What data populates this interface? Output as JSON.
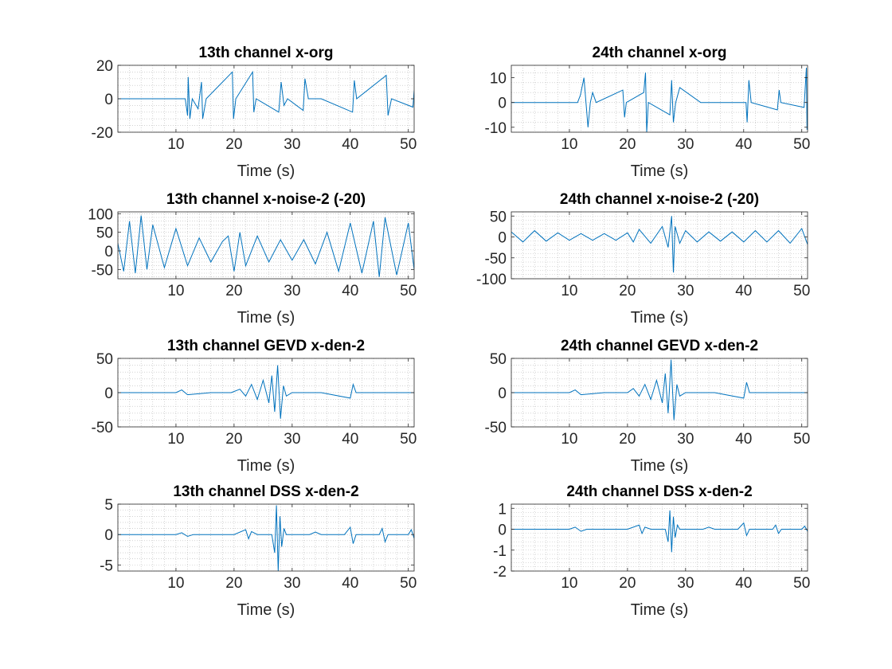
{
  "colors": {
    "line": "#0072BD",
    "axis": "#262626",
    "grid": "#b8b8b8",
    "background": "#ffffff"
  },
  "chart_data": [
    {
      "type": "line",
      "title": "13th channel x-org",
      "xlabel": "Time (s)",
      "ylabel": "",
      "xlim": [
        0,
        51
      ],
      "ylim": [
        -20,
        20
      ],
      "xticks": [
        10,
        20,
        30,
        40,
        50
      ],
      "yticks": [
        -20,
        0,
        20
      ],
      "grid": "on (minor, dotted)",
      "legend": "none",
      "series": [
        {
          "x": [
            0,
            5,
            11.6,
            12.0,
            12.1,
            12.4,
            12.8,
            13.8,
            14.4,
            14.6,
            15.2,
            19.7,
            19.9,
            20.3,
            23.2,
            23.4,
            23.8,
            27.7,
            28.1,
            28.6,
            29.2,
            31.9,
            32.2,
            32.8,
            35,
            40.4,
            40.7,
            41.1,
            46.2,
            46.5,
            47.1,
            50.8,
            51
          ],
          "y": [
            0,
            0,
            0,
            -10,
            13,
            -12,
            0,
            -6,
            10,
            -12,
            0,
            16,
            -12,
            0,
            16,
            -8,
            0,
            -8,
            10,
            -4,
            0,
            -7,
            12,
            0,
            0,
            -8,
            11,
            0,
            14,
            -10,
            0,
            -5,
            5
          ]
        }
      ]
    },
    {
      "type": "line",
      "title": "24th channel x-org",
      "xlabel": "Time (s)",
      "ylabel": "",
      "xlim": [
        0,
        51
      ],
      "ylim": [
        -12,
        15
      ],
      "xticks": [
        10,
        20,
        30,
        40,
        50
      ],
      "yticks": [
        -10,
        0,
        10
      ],
      "grid": "on (minor, dotted)",
      "legend": "none",
      "series": [
        {
          "x": [
            0,
            11,
            11.4,
            11.9,
            12.5,
            13.2,
            13.6,
            14,
            14.6,
            19.2,
            19.5,
            19.8,
            22.8,
            23.1,
            23.3,
            23.6,
            27.3,
            27.6,
            27.9,
            28.3,
            29.0,
            32.6,
            40.4,
            40.6,
            40.9,
            41.3,
            45.8,
            46.1,
            46.4,
            50.4,
            50.8,
            50.9,
            51
          ],
          "y": [
            0,
            0,
            0,
            3,
            10,
            -10,
            0,
            4,
            0,
            5,
            -6,
            0,
            4,
            12,
            -12,
            0,
            -5,
            9,
            -8,
            0,
            6,
            0,
            0,
            -8,
            9,
            0,
            -3,
            5,
            0,
            -2,
            14,
            -11,
            0
          ]
        }
      ]
    },
    {
      "type": "line",
      "title": "13th channel x-noise-2 (-20)",
      "xlabel": "Time (s)",
      "ylabel": "",
      "xlim": [
        0,
        51
      ],
      "ylim": [
        -75,
        105
      ],
      "xticks": [
        10,
        20,
        30,
        40,
        50
      ],
      "yticks": [
        -50,
        0,
        50,
        100
      ],
      "grid": "on (minor, dotted)",
      "legend": "none",
      "series": [
        {
          "x": [
            0,
            1,
            2,
            3,
            4,
            5,
            6,
            8,
            10,
            12,
            14,
            16,
            18,
            19,
            20,
            21,
            22,
            24,
            26,
            28,
            30,
            32,
            34,
            36,
            38,
            40,
            42,
            44,
            45,
            46,
            48,
            50,
            51
          ],
          "y": [
            20,
            -55,
            80,
            -60,
            95,
            -50,
            70,
            -45,
            60,
            -40,
            35,
            -30,
            25,
            40,
            -55,
            50,
            -40,
            40,
            -30,
            30,
            -25,
            30,
            -35,
            50,
            -55,
            75,
            -60,
            80,
            -70,
            90,
            -65,
            75,
            -50
          ]
        }
      ]
    },
    {
      "type": "line",
      "title": "24th channel x-noise-2 (-20)",
      "xlabel": "Time (s)",
      "ylabel": "",
      "xlim": [
        0,
        51
      ],
      "ylim": [
        -100,
        60
      ],
      "xticks": [
        10,
        20,
        30,
        40,
        50
      ],
      "yticks": [
        -100,
        -50,
        0,
        50
      ],
      "grid": "on (minor, dotted)",
      "legend": "none",
      "series": [
        {
          "x": [
            0,
            2,
            4,
            6,
            8,
            10,
            12,
            14,
            16,
            18,
            20,
            21,
            22,
            24,
            26,
            27,
            27.6,
            27.9,
            28.2,
            29,
            30,
            32,
            34,
            36,
            38,
            40,
            42,
            44,
            46,
            48,
            50,
            51
          ],
          "y": [
            12,
            -12,
            15,
            -10,
            10,
            -8,
            8,
            -8,
            8,
            -8,
            10,
            -12,
            18,
            -15,
            25,
            -25,
            50,
            -85,
            25,
            -15,
            15,
            -12,
            12,
            -10,
            12,
            -12,
            15,
            -12,
            15,
            -15,
            20,
            -18
          ]
        }
      ]
    },
    {
      "type": "line",
      "title": "13th channel GEVD x-den-2",
      "xlabel": "Time (s)",
      "ylabel": "",
      "xlim": [
        0,
        51
      ],
      "ylim": [
        -50,
        50
      ],
      "xticks": [
        10,
        20,
        30,
        40,
        50
      ],
      "yticks": [
        -50,
        0,
        50
      ],
      "grid": "on (minor, dotted)",
      "legend": "none",
      "series": [
        {
          "x": [
            0,
            5,
            10,
            11,
            12,
            16,
            19.5,
            21,
            22,
            23,
            24,
            25,
            26,
            26.5,
            27,
            27.5,
            28,
            28.5,
            29,
            30,
            35,
            40,
            40.5,
            41,
            45,
            50,
            51
          ],
          "y": [
            0,
            0,
            0,
            4,
            -3,
            0,
            0,
            5,
            -5,
            12,
            -10,
            18,
            -15,
            25,
            -28,
            40,
            -38,
            10,
            -5,
            0,
            0,
            -8,
            12,
            0,
            0,
            0,
            0
          ]
        }
      ]
    },
    {
      "type": "line",
      "title": "24th channel GEVD x-den-2",
      "xlabel": "Time (s)",
      "ylabel": "",
      "xlim": [
        0,
        51
      ],
      "ylim": [
        -50,
        50
      ],
      "xticks": [
        10,
        20,
        30,
        40,
        50
      ],
      "yticks": [
        -50,
        0,
        50
      ],
      "grid": "on (minor, dotted)",
      "legend": "none",
      "series": [
        {
          "x": [
            0,
            5,
            10,
            11,
            12,
            16,
            20,
            21,
            22,
            23,
            24,
            25,
            26,
            26.5,
            27,
            27.5,
            28,
            28.5,
            29,
            30,
            35,
            40,
            40.5,
            41,
            45,
            50,
            51
          ],
          "y": [
            0,
            0,
            0,
            4,
            -3,
            0,
            0,
            6,
            -5,
            12,
            -10,
            18,
            -15,
            28,
            -30,
            48,
            -40,
            12,
            -5,
            0,
            0,
            -8,
            15,
            0,
            0,
            0,
            0
          ]
        }
      ]
    },
    {
      "type": "line",
      "title": "13th channel DSS x-den-2",
      "xlabel": "Time (s)",
      "ylabel": "",
      "xlim": [
        0,
        51
      ],
      "ylim": [
        -6,
        5
      ],
      "xticks": [
        10,
        20,
        30,
        40,
        50
      ],
      "yticks": [
        -5,
        0,
        5
      ],
      "grid": "on (minor, dotted)",
      "legend": "none",
      "series": [
        {
          "x": [
            0,
            10,
            11,
            12,
            13,
            20,
            22,
            22.5,
            23,
            24,
            26.5,
            27,
            27.3,
            27.6,
            27.9,
            28.2,
            28.6,
            29,
            30,
            33,
            34,
            35,
            39,
            40,
            40.5,
            41,
            45,
            45.5,
            46,
            46.5,
            50,
            50.5,
            51
          ],
          "y": [
            0,
            0,
            0.3,
            -0.3,
            0,
            0,
            0.8,
            -0.7,
            0.5,
            0,
            0,
            -3,
            4.8,
            -6,
            3,
            -2,
            1,
            0,
            0,
            0,
            0.4,
            0,
            0,
            1.2,
            -1.5,
            0,
            0,
            1,
            -1.2,
            0,
            0,
            0.8,
            -0.6
          ]
        }
      ]
    },
    {
      "type": "line",
      "title": "24th channel DSS x-den-2",
      "xlabel": "Time (s)",
      "ylabel": "",
      "xlim": [
        0,
        51
      ],
      "ylim": [
        -2,
        1.2
      ],
      "xticks": [
        10,
        20,
        30,
        40,
        50
      ],
      "yticks": [
        -2,
        -1,
        0,
        1
      ],
      "grid": "on (minor, dotted)",
      "legend": "none",
      "series": [
        {
          "x": [
            0,
            10,
            11,
            12,
            13,
            20,
            22,
            22.5,
            23,
            24,
            26.5,
            27,
            27.3,
            27.6,
            27.9,
            28.2,
            28.6,
            29,
            30,
            33,
            34,
            35,
            39,
            40,
            40.5,
            41,
            45,
            45.5,
            46,
            46.5,
            50,
            50.5,
            51
          ],
          "y": [
            0,
            0,
            0.1,
            -0.1,
            0,
            0,
            0.2,
            -0.2,
            0.1,
            0,
            0,
            -0.6,
            0.9,
            -1.1,
            0.6,
            -0.4,
            0.2,
            0,
            0,
            0,
            0.1,
            0,
            0,
            0.3,
            -0.3,
            0,
            0,
            0.2,
            -0.2,
            0,
            0,
            0.15,
            -0.1
          ]
        }
      ]
    }
  ]
}
